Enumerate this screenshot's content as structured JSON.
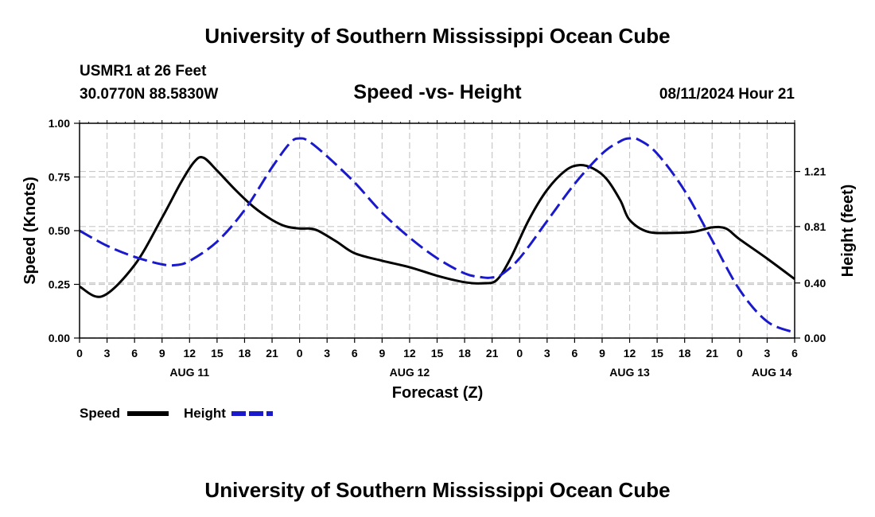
{
  "header": {
    "title": "University of Southern Mississippi Ocean Cube",
    "station": "USMR1 at 26 Feet",
    "location": "30.0770N  88.5830W",
    "subtitle": "Speed -vs- Height",
    "datetime": "08/11/2024 Hour 21"
  },
  "footer": {
    "title": "University of Southern Mississippi Ocean Cube"
  },
  "chart_data": {
    "type": "line",
    "title": "Speed -vs- Height",
    "xlabel": "Forecast (Z)",
    "ylabel": "Speed (Knots)",
    "y2label": "Height (feet)",
    "x_unit": "hours from Aug 11 00Z",
    "xlim": [
      0,
      78
    ],
    "ylim": [
      0,
      1
    ],
    "y2lim": [
      0,
      1.56
    ],
    "x_ticks": [
      {
        "x": 0,
        "label": "0"
      },
      {
        "x": 3,
        "label": "3"
      },
      {
        "x": 6,
        "label": "6"
      },
      {
        "x": 9,
        "label": "9"
      },
      {
        "x": 12,
        "label": "12"
      },
      {
        "x": 15,
        "label": "15"
      },
      {
        "x": 18,
        "label": "18"
      },
      {
        "x": 21,
        "label": "21"
      },
      {
        "x": 24,
        "label": "0"
      },
      {
        "x": 27,
        "label": "3"
      },
      {
        "x": 30,
        "label": "6"
      },
      {
        "x": 33,
        "label": "9"
      },
      {
        "x": 36,
        "label": "12"
      },
      {
        "x": 39,
        "label": "15"
      },
      {
        "x": 42,
        "label": "18"
      },
      {
        "x": 45,
        "label": "21"
      },
      {
        "x": 48,
        "label": "0"
      },
      {
        "x": 51,
        "label": "3"
      },
      {
        "x": 54,
        "label": "6"
      },
      {
        "x": 57,
        "label": "9"
      },
      {
        "x": 60,
        "label": "12"
      },
      {
        "x": 63,
        "label": "15"
      },
      {
        "x": 66,
        "label": "18"
      },
      {
        "x": 69,
        "label": "21"
      },
      {
        "x": 72,
        "label": "0"
      },
      {
        "x": 75,
        "label": "3"
      },
      {
        "x": 78,
        "label": "6"
      }
    ],
    "date_labels": [
      {
        "x": 12,
        "label": "AUG 11"
      },
      {
        "x": 36,
        "label": "AUG 12"
      },
      {
        "x": 60,
        "label": "AUG 13"
      },
      {
        "x": 75.5,
        "label": "AUG 14"
      }
    ],
    "y_ticks": [
      0.0,
      0.25,
      0.5,
      0.75,
      1.0
    ],
    "y_tick_labels": [
      "0.00",
      "0.25",
      "0.50",
      "0.75",
      "1.00"
    ],
    "y2_ticks": [
      0.0,
      0.4,
      0.81,
      1.21
    ],
    "y2_tick_labels": [
      "0.00",
      "0.40",
      "0.81",
      "1.21"
    ],
    "series": [
      {
        "name": "Speed",
        "axis": "left",
        "color": "#000000",
        "dash": "solid",
        "x": [
          0,
          2.5,
          6,
          9,
          11,
          12.5,
          13.5,
          15,
          17,
          19,
          21,
          22.5,
          24,
          25,
          26,
          28,
          30,
          33,
          36,
          39,
          42,
          44,
          45.5,
          47,
          49,
          51,
          53,
          54.5,
          56,
          57.5,
          59,
          60,
          62,
          65,
          67,
          69,
          70.5,
          72,
          75,
          78
        ],
        "y": [
          0.24,
          0.195,
          0.34,
          0.56,
          0.72,
          0.82,
          0.84,
          0.78,
          0.69,
          0.61,
          0.55,
          0.52,
          0.51,
          0.51,
          0.5,
          0.45,
          0.395,
          0.36,
          0.33,
          0.29,
          0.26,
          0.255,
          0.27,
          0.37,
          0.55,
          0.69,
          0.78,
          0.805,
          0.79,
          0.74,
          0.64,
          0.55,
          0.495,
          0.49,
          0.495,
          0.515,
          0.51,
          0.46,
          0.37,
          0.275
        ]
      },
      {
        "name": "Height",
        "axis": "right",
        "color": "#1a1acc",
        "dash": "dashed",
        "x": [
          0,
          3,
          6,
          9,
          10.5,
          12,
          15,
          18,
          21,
          23,
          24,
          25,
          27,
          30,
          33,
          36,
          39,
          42,
          44,
          45,
          46,
          48,
          51,
          54,
          57,
          59,
          60,
          61,
          63,
          66,
          69,
          72,
          75,
          78
        ],
        "y": [
          0.78,
          0.67,
          0.59,
          0.535,
          0.53,
          0.56,
          0.7,
          0.93,
          1.24,
          1.42,
          1.45,
          1.43,
          1.32,
          1.13,
          0.91,
          0.73,
          0.58,
          0.47,
          0.44,
          0.44,
          0.46,
          0.58,
          0.85,
          1.12,
          1.34,
          1.43,
          1.45,
          1.44,
          1.34,
          1.07,
          0.71,
          0.35,
          0.12,
          0.04
        ]
      }
    ],
    "legend": [
      {
        "label": "Speed",
        "color": "#000000",
        "dash": "solid"
      },
      {
        "label": "Height",
        "color": "#1a1acc",
        "dash": "dashed"
      }
    ]
  }
}
